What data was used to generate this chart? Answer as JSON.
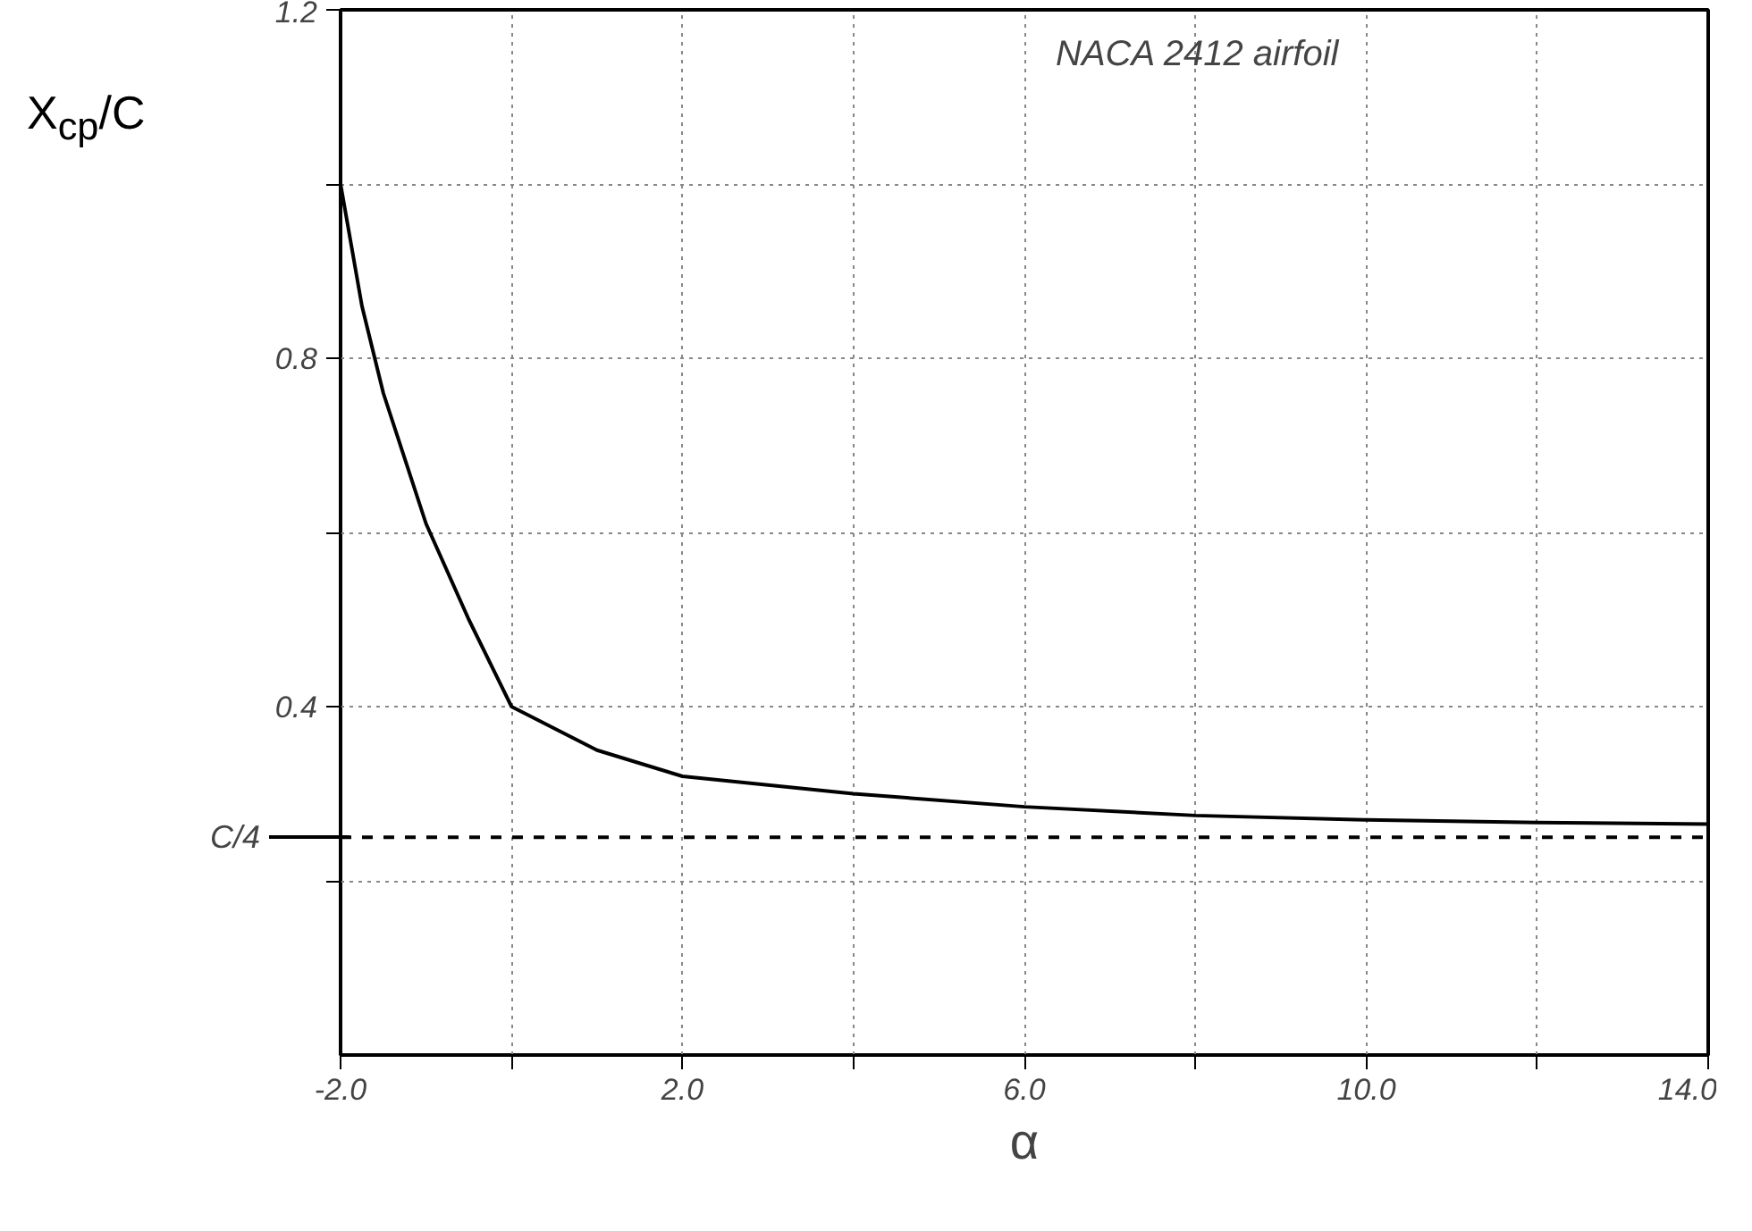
{
  "chart_data": {
    "type": "line",
    "xlabel": "α",
    "ylabel": "X$_{cp}$/C",
    "annotations": [
      "NACA 2412 airfoil"
    ],
    "x": [
      -2.0,
      -1.75,
      -1.5,
      -1.0,
      -0.5,
      0.0,
      1.0,
      2.0,
      3.0,
      4.0,
      6.0,
      8.0,
      10.0,
      12.0,
      14.0
    ],
    "series": [
      {
        "color": "#000000",
        "values": [
          1.0,
          0.86,
          0.76,
          0.61,
          0.5,
          0.4,
          0.35,
          0.32,
          0.31,
          0.3,
          0.285,
          0.275,
          0.27,
          0.267,
          0.265
        ]
      }
    ],
    "xlim": [
      -2.0,
      14.0
    ],
    "ylim": [
      0,
      1.2
    ],
    "xticks": [
      {
        "value": -2.0,
        "label": "-2.0"
      },
      {
        "value": 0,
        "label": null
      },
      {
        "value": 2.0,
        "label": "2.0"
      },
      {
        "value": 4,
        "label": null
      },
      {
        "value": 6.0,
        "label": "6.0"
      },
      {
        "value": 8,
        "label": null
      },
      {
        "value": 10.0,
        "label": "10.0"
      },
      {
        "value": 12,
        "label": null
      },
      {
        "value": 14.0,
        "label": "14.0"
      }
    ],
    "yticks": [
      {
        "value": 0.2,
        "label": null
      },
      {
        "value": 0.4,
        "label": "0.4"
      },
      {
        "value": 0.6,
        "label": null
      },
      {
        "value": 0.8,
        "label": "0.8"
      },
      {
        "value": 1.0,
        "label": null
      },
      {
        "value": 1.2,
        "label": "1.2"
      }
    ],
    "ref_lines": [
      {
        "axis": "y",
        "value": 0.25,
        "label": "C/4",
        "line_style": "dashed",
        "color": "#000000"
      }
    ],
    "grid": true,
    "marker": "none",
    "line_style": "solid"
  }
}
